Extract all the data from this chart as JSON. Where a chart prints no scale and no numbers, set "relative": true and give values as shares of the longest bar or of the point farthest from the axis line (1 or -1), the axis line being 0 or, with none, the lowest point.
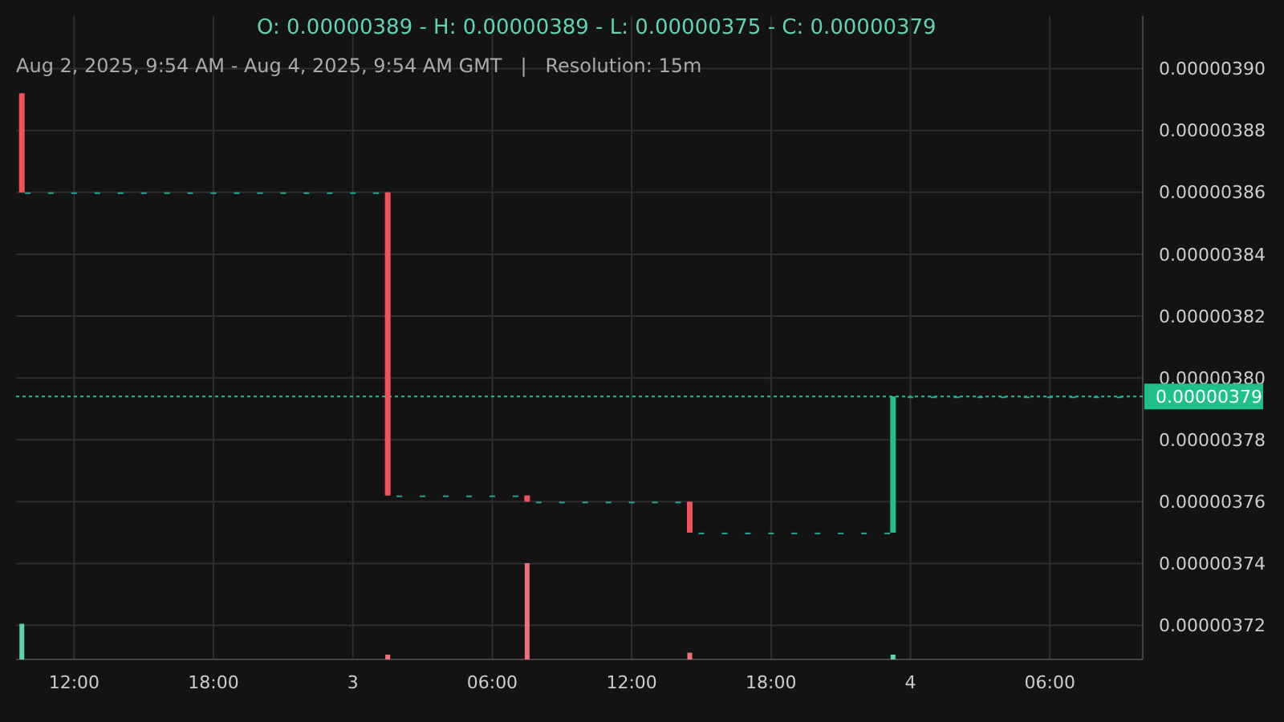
{
  "chart_data": [
    {
      "type": "candlestick",
      "title": "O: 0.00000389 - H: 0.00000389 - L: 0.00000375 - C: 0.00000379",
      "subtitle": "Aug 2, 2025, 9:54 AM - Aug 4, 2025, 9:54 AM GMT   |   Resolution: 15m",
      "x": [
        "2025-08-02T09:45",
        "2025-08-02T10:00",
        "2025-08-02T11:00",
        "2025-08-02T12:00",
        "2025-08-02T13:00",
        "2025-08-02T14:00",
        "2025-08-02T15:00",
        "2025-08-02T16:00",
        "2025-08-02T17:00",
        "2025-08-02T18:00",
        "2025-08-02T19:00",
        "2025-08-02T20:00",
        "2025-08-02T21:00",
        "2025-08-02T22:00",
        "2025-08-02T23:00",
        "2025-08-03T00:00",
        "2025-08-03T01:00",
        "2025-08-03T01:30",
        "2025-08-03T02:00",
        "2025-08-03T03:00",
        "2025-08-03T04:00",
        "2025-08-03T05:00",
        "2025-08-03T06:00",
        "2025-08-03T07:00",
        "2025-08-03T07:30",
        "2025-08-03T08:00",
        "2025-08-03T09:00",
        "2025-08-03T10:00",
        "2025-08-03T11:00",
        "2025-08-03T12:00",
        "2025-08-03T13:00",
        "2025-08-03T14:00",
        "2025-08-03T14:30",
        "2025-08-03T15:00",
        "2025-08-03T16:00",
        "2025-08-03T17:00",
        "2025-08-03T18:00",
        "2025-08-03T19:00",
        "2025-08-03T20:00",
        "2025-08-03T21:00",
        "2025-08-03T22:00",
        "2025-08-03T23:00",
        "2025-08-03T23:15",
        "2025-08-04T00:00",
        "2025-08-04T01:00",
        "2025-08-04T02:00",
        "2025-08-04T03:00",
        "2025-08-04T04:00",
        "2025-08-04T05:00",
        "2025-08-04T06:00",
        "2025-08-04T07:00",
        "2025-08-04T08:00",
        "2025-08-04T09:00"
      ],
      "ohlc": [
        [
          3.892e-06,
          3.892e-06,
          3.86e-06,
          3.86e-06
        ],
        [
          3.86e-06,
          3.86e-06,
          3.86e-06,
          3.86e-06
        ],
        [
          3.86e-06,
          3.86e-06,
          3.86e-06,
          3.86e-06
        ],
        [
          3.86e-06,
          3.86e-06,
          3.86e-06,
          3.86e-06
        ],
        [
          3.86e-06,
          3.86e-06,
          3.86e-06,
          3.86e-06
        ],
        [
          3.86e-06,
          3.86e-06,
          3.86e-06,
          3.86e-06
        ],
        [
          3.86e-06,
          3.86e-06,
          3.86e-06,
          3.86e-06
        ],
        [
          3.86e-06,
          3.86e-06,
          3.86e-06,
          3.86e-06
        ],
        [
          3.86e-06,
          3.86e-06,
          3.86e-06,
          3.86e-06
        ],
        [
          3.86e-06,
          3.86e-06,
          3.86e-06,
          3.86e-06
        ],
        [
          3.86e-06,
          3.86e-06,
          3.86e-06,
          3.86e-06
        ],
        [
          3.86e-06,
          3.86e-06,
          3.86e-06,
          3.86e-06
        ],
        [
          3.86e-06,
          3.86e-06,
          3.86e-06,
          3.86e-06
        ],
        [
          3.86e-06,
          3.86e-06,
          3.86e-06,
          3.86e-06
        ],
        [
          3.86e-06,
          3.86e-06,
          3.86e-06,
          3.86e-06
        ],
        [
          3.86e-06,
          3.86e-06,
          3.86e-06,
          3.86e-06
        ],
        [
          3.86e-06,
          3.86e-06,
          3.86e-06,
          3.86e-06
        ],
        [
          3.86e-06,
          3.86e-06,
          3.762e-06,
          3.762e-06
        ],
        [
          3.762e-06,
          3.762e-06,
          3.762e-06,
          3.762e-06
        ],
        [
          3.762e-06,
          3.762e-06,
          3.762e-06,
          3.762e-06
        ],
        [
          3.762e-06,
          3.762e-06,
          3.762e-06,
          3.762e-06
        ],
        [
          3.762e-06,
          3.762e-06,
          3.762e-06,
          3.762e-06
        ],
        [
          3.762e-06,
          3.762e-06,
          3.762e-06,
          3.762e-06
        ],
        [
          3.762e-06,
          3.762e-06,
          3.762e-06,
          3.762e-06
        ],
        [
          3.762e-06,
          3.762e-06,
          3.76e-06,
          3.76e-06
        ],
        [
          3.76e-06,
          3.76e-06,
          3.76e-06,
          3.76e-06
        ],
        [
          3.76e-06,
          3.76e-06,
          3.76e-06,
          3.76e-06
        ],
        [
          3.76e-06,
          3.76e-06,
          3.76e-06,
          3.76e-06
        ],
        [
          3.76e-06,
          3.76e-06,
          3.76e-06,
          3.76e-06
        ],
        [
          3.76e-06,
          3.76e-06,
          3.76e-06,
          3.76e-06
        ],
        [
          3.76e-06,
          3.76e-06,
          3.76e-06,
          3.76e-06
        ],
        [
          3.76e-06,
          3.76e-06,
          3.76e-06,
          3.76e-06
        ],
        [
          3.76e-06,
          3.76e-06,
          3.75e-06,
          3.75e-06
        ],
        [
          3.75e-06,
          3.75e-06,
          3.75e-06,
          3.75e-06
        ],
        [
          3.75e-06,
          3.75e-06,
          3.75e-06,
          3.75e-06
        ],
        [
          3.75e-06,
          3.75e-06,
          3.75e-06,
          3.75e-06
        ],
        [
          3.75e-06,
          3.75e-06,
          3.75e-06,
          3.75e-06
        ],
        [
          3.75e-06,
          3.75e-06,
          3.75e-06,
          3.75e-06
        ],
        [
          3.75e-06,
          3.75e-06,
          3.75e-06,
          3.75e-06
        ],
        [
          3.75e-06,
          3.75e-06,
          3.75e-06,
          3.75e-06
        ],
        [
          3.75e-06,
          3.75e-06,
          3.75e-06,
          3.75e-06
        ],
        [
          3.75e-06,
          3.75e-06,
          3.75e-06,
          3.75e-06
        ],
        [
          3.75e-06,
          3.794e-06,
          3.75e-06,
          3.794e-06
        ],
        [
          3.794e-06,
          3.794e-06,
          3.794e-06,
          3.794e-06
        ],
        [
          3.794e-06,
          3.794e-06,
          3.794e-06,
          3.794e-06
        ],
        [
          3.794e-06,
          3.794e-06,
          3.794e-06,
          3.794e-06
        ],
        [
          3.794e-06,
          3.794e-06,
          3.794e-06,
          3.794e-06
        ],
        [
          3.794e-06,
          3.794e-06,
          3.794e-06,
          3.794e-06
        ],
        [
          3.794e-06,
          3.794e-06,
          3.794e-06,
          3.794e-06
        ],
        [
          3.794e-06,
          3.794e-06,
          3.794e-06,
          3.794e-06
        ],
        [
          3.794e-06,
          3.794e-06,
          3.794e-06,
          3.794e-06
        ],
        [
          3.794e-06,
          3.794e-06,
          3.794e-06,
          3.794e-06
        ],
        [
          3.794e-06,
          3.794e-06,
          3.794e-06,
          3.794e-06
        ]
      ],
      "colors": [
        "#f0525b",
        "#1fa896",
        "#1fa896",
        "#1fa896",
        "#1fa896",
        "#1fa896",
        "#1fa896",
        "#1fa896",
        "#1fa896",
        "#1fa896",
        "#1fa896",
        "#1fa896",
        "#1fa896",
        "#1fa896",
        "#1fa896",
        "#1fa896",
        "#1fa896",
        "#f0525b",
        "#1fa896",
        "#1fa896",
        "#1fa896",
        "#1fa896",
        "#1fa896",
        "#1fa896",
        "#f0525b",
        "#1fa896",
        "#1fa896",
        "#1fa896",
        "#1fa896",
        "#1fa896",
        "#1fa896",
        "#1fa896",
        "#f0525b",
        "#1fa896",
        "#1fa896",
        "#1fa896",
        "#1fa896",
        "#1fa896",
        "#1fa896",
        "#1fa896",
        "#1fa896",
        "#1fa896",
        "#21c08b",
        "#1fa896",
        "#1fa896",
        "#1fa896",
        "#1fa896",
        "#1fa896",
        "#1fa896",
        "#1fa896",
        "#1fa896",
        "#1fa896",
        "#1fa896"
      ],
      "xlim": [
        "2025-08-02T09:30",
        "2025-08-04T10:00"
      ],
      "xticks": [
        {
          "value": "2025-08-02T12:00",
          "label": "12:00"
        },
        {
          "value": "2025-08-02T18:00",
          "label": "18:00"
        },
        {
          "value": "2025-08-03T00:00",
          "label": "3"
        },
        {
          "value": "2025-08-03T06:00",
          "label": "06:00"
        },
        {
          "value": "2025-08-03T12:00",
          "label": "12:00"
        },
        {
          "value": "2025-08-03T18:00",
          "label": "18:00"
        },
        {
          "value": "2025-08-04T00:00",
          "label": "4"
        },
        {
          "value": "2025-08-04T06:00",
          "label": "06:00"
        }
      ],
      "ylim": [
        3.709e-06,
        3.917e-06
      ],
      "yticks": [
        {
          "value": 3.72e-06,
          "label": "0.00000372"
        },
        {
          "value": 3.74e-06,
          "label": "0.00000374"
        },
        {
          "value": 3.76e-06,
          "label": "0.00000376"
        },
        {
          "value": 3.78e-06,
          "label": "0.00000378"
        },
        {
          "value": 3.8e-06,
          "label": "0.00000380"
        },
        {
          "value": 3.82e-06,
          "label": "0.00000382"
        },
        {
          "value": 3.84e-06,
          "label": "0.00000384"
        },
        {
          "value": 3.86e-06,
          "label": "0.00000386"
        },
        {
          "value": 3.88e-06,
          "label": "0.00000388"
        },
        {
          "value": 3.9e-06,
          "label": "0.00000390"
        }
      ],
      "grid": true,
      "ref_lines": [
        {
          "axis": "y",
          "value": 3.794e-06,
          "label": "0.00000379",
          "color": "#21c08b",
          "line_style": "dotted"
        }
      ]
    },
    {
      "type": "bar",
      "relative": true,
      "x": [
        "2025-08-02T09:45",
        "2025-08-03T01:30",
        "2025-08-03T07:30",
        "2025-08-03T14:30",
        "2025-08-03T23:15"
      ],
      "values": [
        0.37,
        0.05,
        1,
        0.07,
        0.05
      ],
      "colors": [
        "#5fd3ad",
        "#f0707a",
        "#f0707a",
        "#f0707a",
        "#5fd3ad"
      ],
      "xlim": [
        "2025-08-02T09:30",
        "2025-08-04T10:00"
      ]
    }
  ]
}
